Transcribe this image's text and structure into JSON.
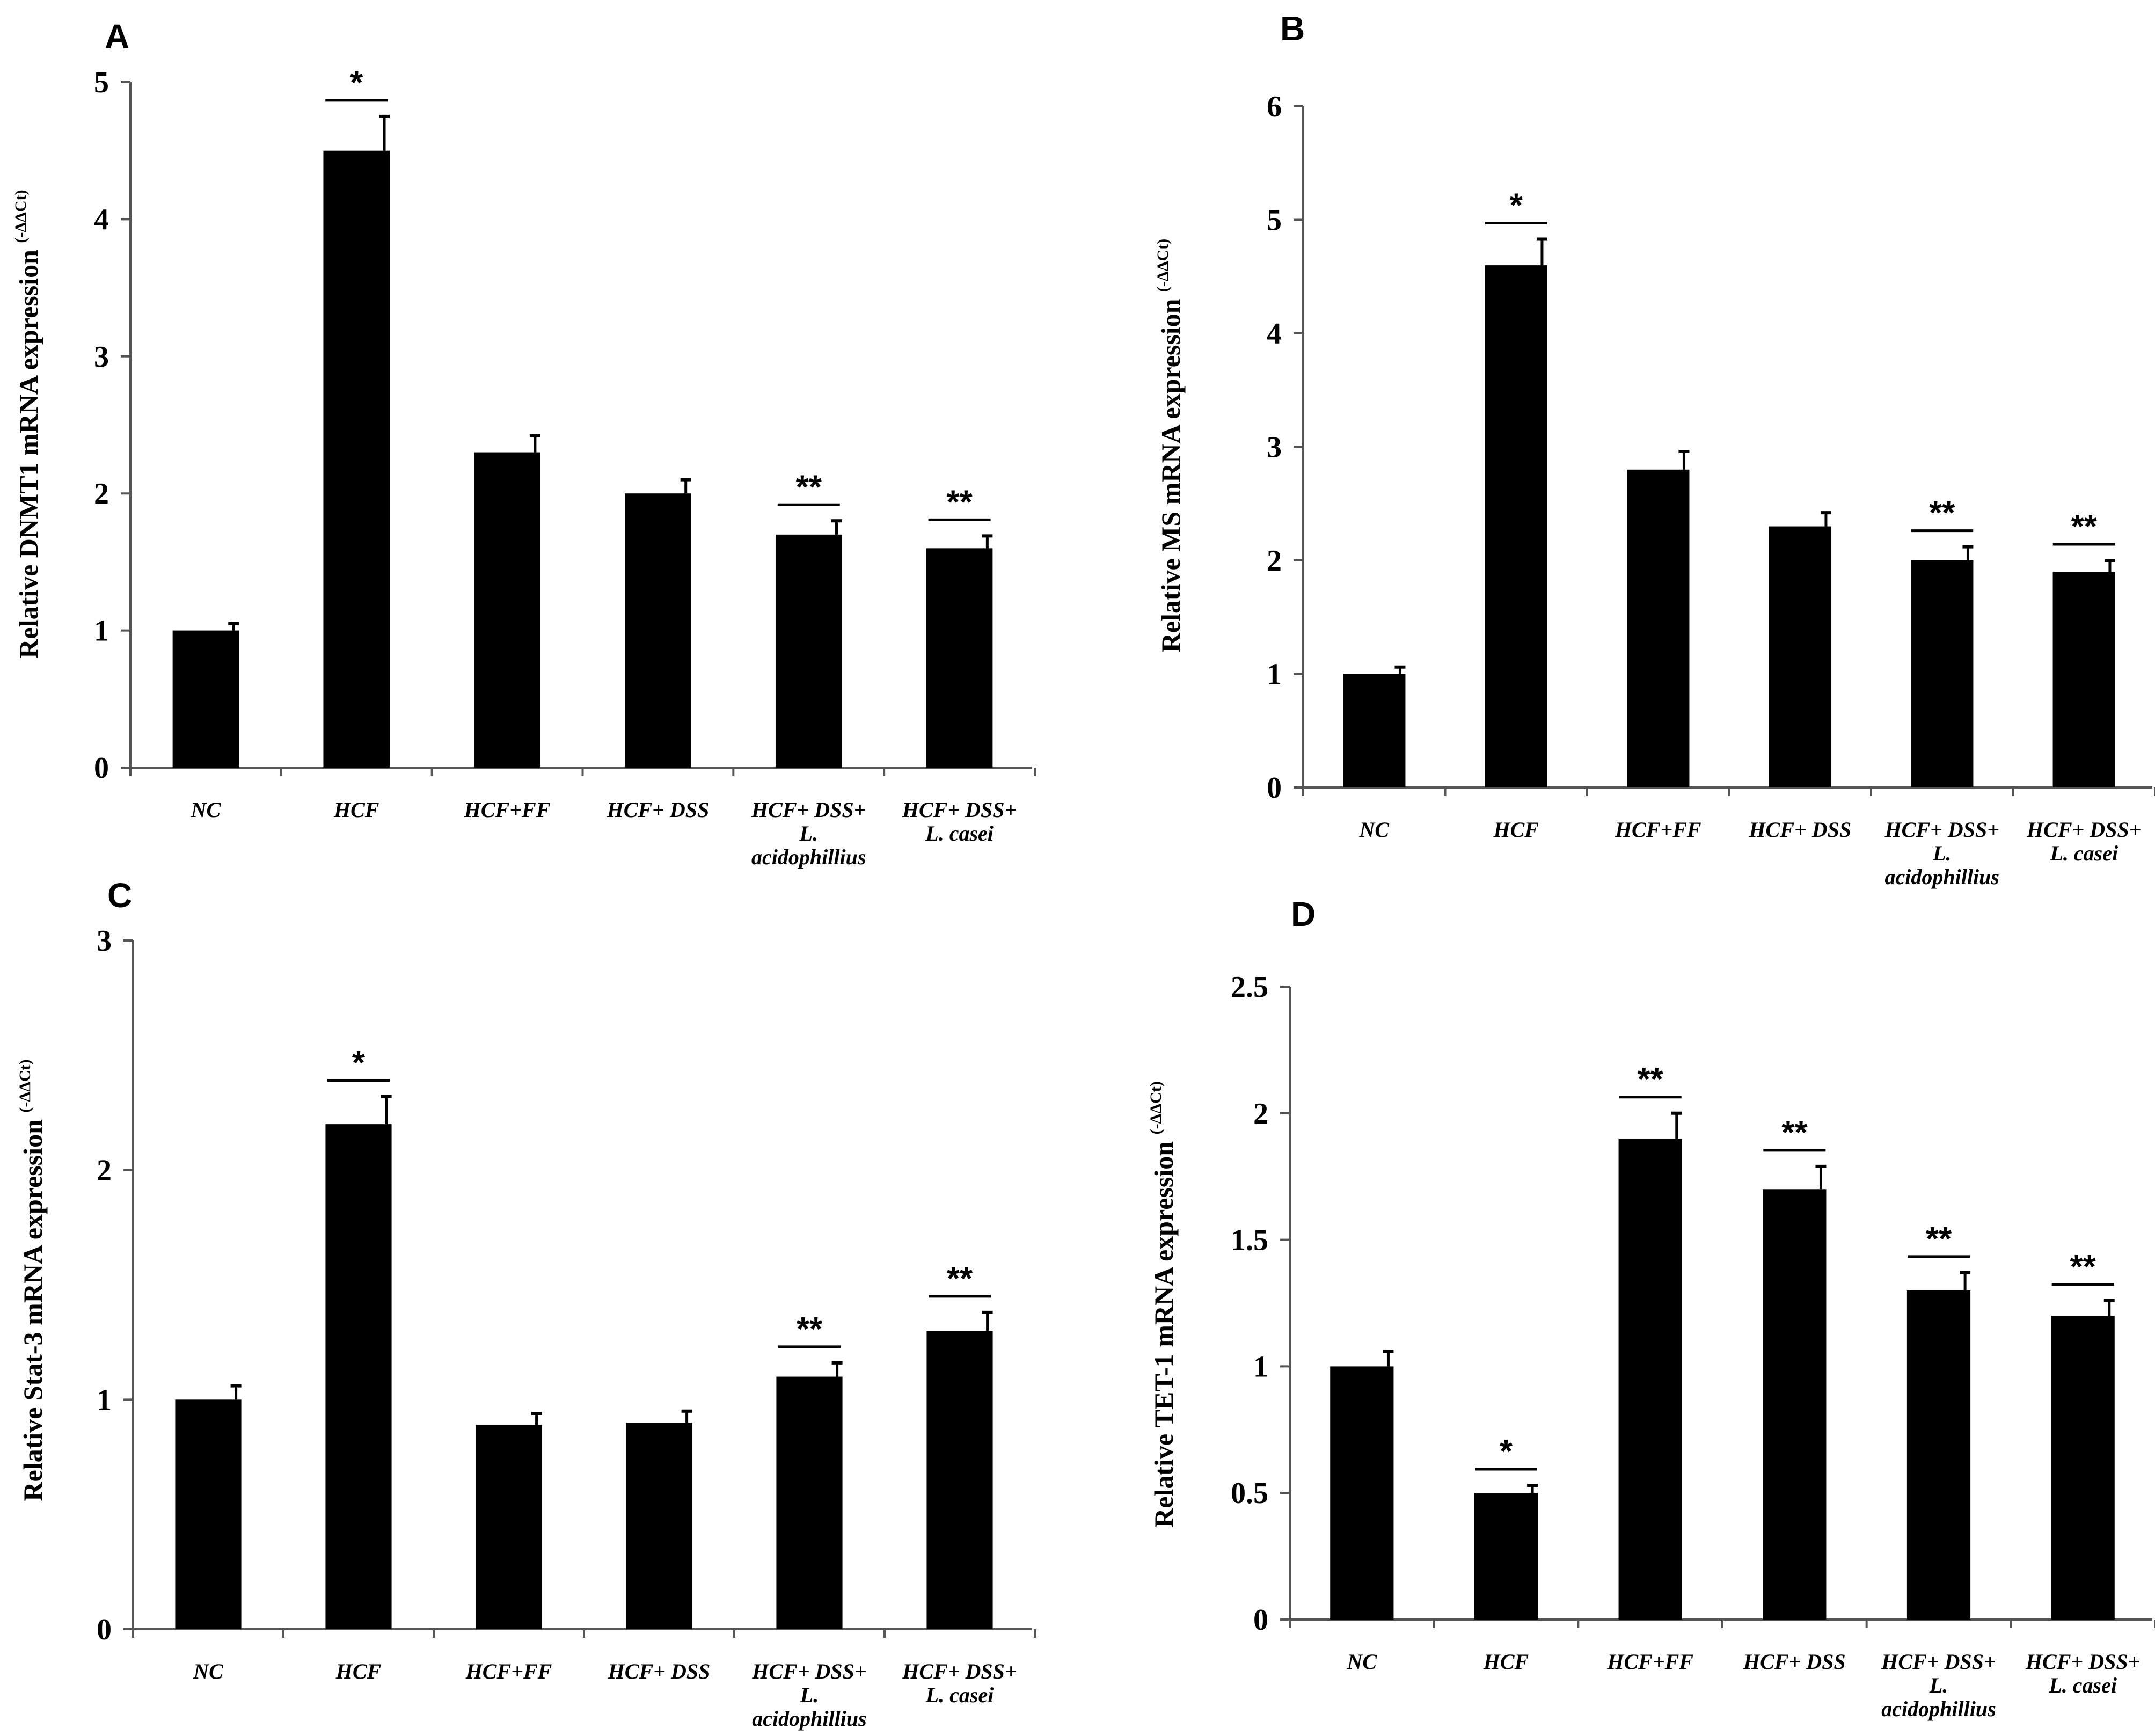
{
  "chart_data": [
    {
      "panel": "A",
      "type": "bar",
      "ylabel": "Relative DNMT1  mRNA expression",
      "ylabel_superscript": "(-ΔΔCt)",
      "ylim": [
        0,
        5
      ],
      "yticks": [
        0,
        1,
        2,
        3,
        4,
        5
      ],
      "ytick_labels": [
        "0",
        "1",
        "2",
        "3",
        "4",
        "5"
      ],
      "categories": [
        [
          "NC"
        ],
        [
          "HCF"
        ],
        [
          "HCF+FF"
        ],
        [
          "HCF+ DSS"
        ],
        [
          "HCF+ DSS+",
          "L.",
          "acidophillius"
        ],
        [
          "HCF+ DSS+",
          "L. casei"
        ]
      ],
      "values": [
        1.0,
        4.5,
        2.3,
        2.0,
        1.7,
        1.6
      ],
      "errors": [
        0.05,
        0.25,
        0.12,
        0.1,
        0.1,
        0.09
      ],
      "significance": [
        "",
        "*",
        "",
        "",
        "**",
        "**"
      ]
    },
    {
      "panel": "B",
      "type": "bar",
      "ylabel": "Relative MS mRNA expression",
      "ylabel_superscript": "(-ΔΔCt)",
      "ylim": [
        0,
        6
      ],
      "yticks": [
        0,
        1,
        2,
        3,
        4,
        5,
        6
      ],
      "ytick_labels": [
        "0",
        "1",
        "2",
        "3",
        "4",
        "5",
        "6"
      ],
      "categories": [
        [
          "NC"
        ],
        [
          "HCF"
        ],
        [
          "HCF+FF"
        ],
        [
          "HCF+ DSS"
        ],
        [
          "HCF+ DSS+",
          "L.",
          "acidophillius"
        ],
        [
          "HCF+ DSS+",
          "L. casei"
        ]
      ],
      "values": [
        1.0,
        4.6,
        2.8,
        2.3,
        2.0,
        1.9
      ],
      "errors": [
        0.06,
        0.23,
        0.16,
        0.12,
        0.12,
        0.1
      ],
      "significance": [
        "",
        "*",
        "",
        "",
        "**",
        "**"
      ]
    },
    {
      "panel": "C",
      "type": "bar",
      "ylabel": "Relative Stat-3 mRNA expression",
      "ylabel_superscript": "(-ΔΔCt)",
      "ylim": [
        0,
        3
      ],
      "yticks": [
        0,
        1,
        2,
        3
      ],
      "ytick_labels": [
        "0",
        "1",
        "2",
        "3"
      ],
      "categories": [
        [
          "NC"
        ],
        [
          "HCF"
        ],
        [
          "HCF+FF"
        ],
        [
          "HCF+ DSS"
        ],
        [
          "HCF+ DSS+",
          "L.",
          "acidophillius"
        ],
        [
          "HCF+ DSS+",
          "L. casei"
        ]
      ],
      "values": [
        1.0,
        2.2,
        0.89,
        0.9,
        1.1,
        1.3
      ],
      "errors": [
        0.06,
        0.12,
        0.05,
        0.05,
        0.06,
        0.08
      ],
      "significance": [
        "",
        "*",
        "",
        "",
        "**",
        "**"
      ]
    },
    {
      "panel": "D",
      "type": "bar",
      "ylabel": "Relative TET-1 mRNA expression",
      "ylabel_superscript": "(-ΔΔCt)",
      "ylim": [
        0,
        2.5
      ],
      "yticks": [
        0,
        0.5,
        1,
        1.5,
        2,
        2.5
      ],
      "ytick_labels": [
        "0",
        "0.5",
        "1",
        "1.5",
        "2",
        "2.5"
      ],
      "categories": [
        [
          "NC"
        ],
        [
          "HCF"
        ],
        [
          "HCF+FF"
        ],
        [
          "HCF+ DSS"
        ],
        [
          "HCF+ DSS+",
          "L.",
          "acidophillius"
        ],
        [
          "HCF+ DSS+",
          "L. casei"
        ]
      ],
      "values": [
        1.0,
        0.5,
        1.9,
        1.7,
        1.3,
        1.2
      ],
      "errors": [
        0.06,
        0.03,
        0.1,
        0.09,
        0.07,
        0.06
      ],
      "significance": [
        "",
        "*",
        "**",
        "**",
        "**",
        "**"
      ]
    }
  ]
}
